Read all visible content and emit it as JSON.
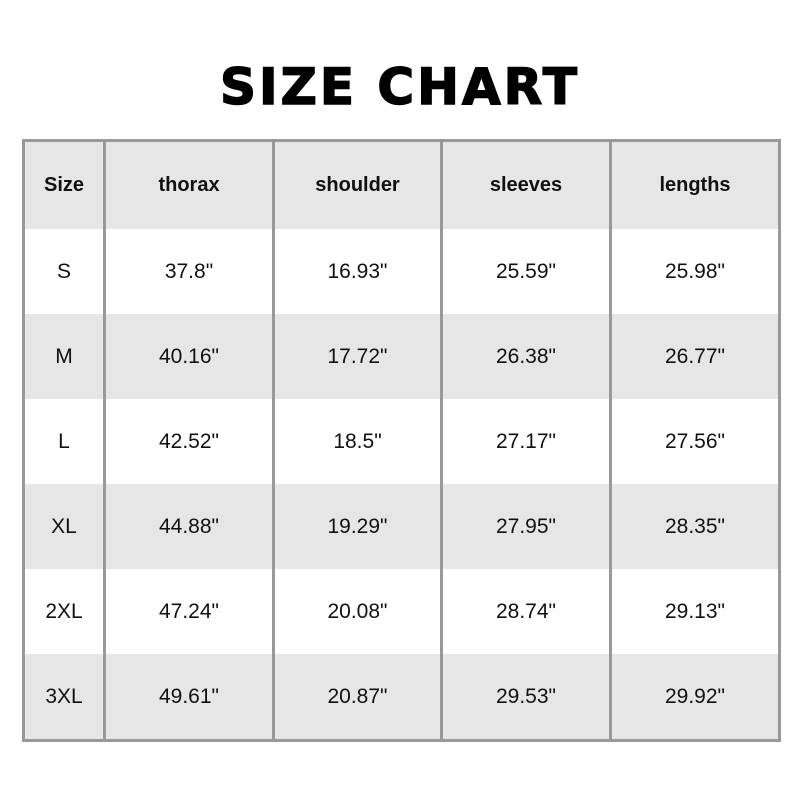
{
  "title": "SIZE CHART",
  "table": {
    "headers": [
      "Size",
      "thorax",
      "shoulder",
      "sleeves",
      "lengths"
    ],
    "rows": [
      [
        "S",
        "37.8\"",
        "16.93\"",
        "25.59\"",
        "25.98\""
      ],
      [
        "M",
        "40.16\"",
        "17.72\"",
        "26.38\"",
        "26.77\""
      ],
      [
        "L",
        "42.52\"",
        "18.5\"",
        "27.17\"",
        "27.56\""
      ],
      [
        "XL",
        "44.88\"",
        "19.29\"",
        "27.95\"",
        "28.35\""
      ],
      [
        "2XL",
        "47.24\"",
        "20.08\"",
        "28.74\"",
        "29.13\""
      ],
      [
        "3XL",
        "49.61\"",
        "20.87\"",
        "29.53\"",
        "29.92\""
      ]
    ]
  },
  "colors": {
    "header_bg": "#e6e6e6",
    "stripe_bg": "#e6e6e6",
    "border": "#999999"
  }
}
